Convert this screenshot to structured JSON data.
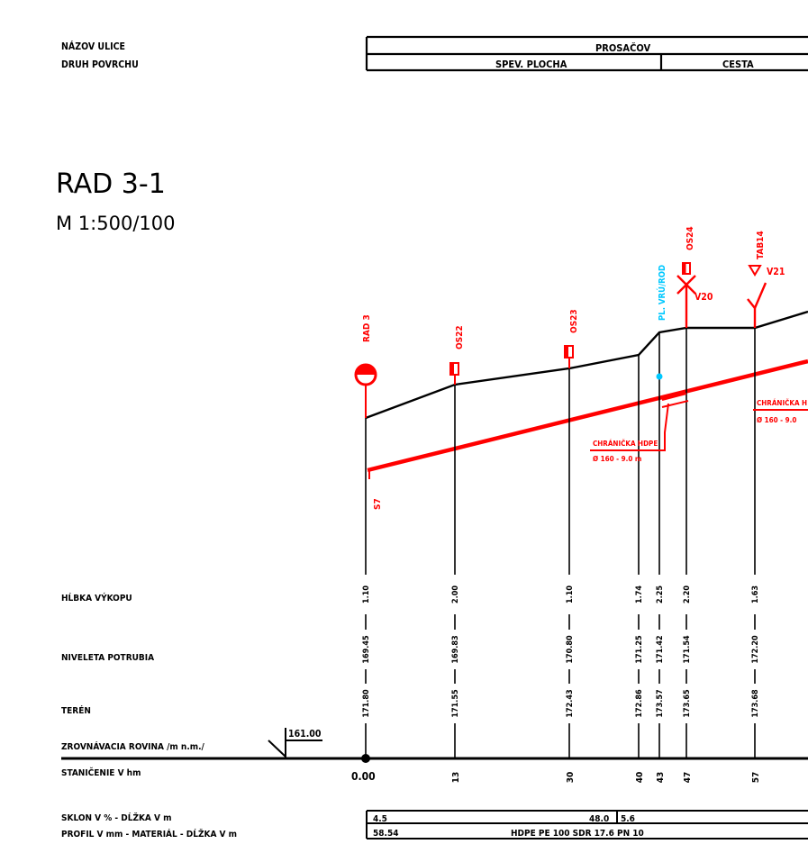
{
  "header": {
    "street_label": "NÁZOV ULICE",
    "surface_label": "DRUH POVRCHU",
    "street_name": "PROSAČOV",
    "surface_1": "SPEV. PLOCHA",
    "surface_2": "CESTA"
  },
  "title": {
    "name": "RAD 3-1",
    "scale": "M 1:500/100"
  },
  "table_labels": {
    "depth": "HĹBKA VÝKOPU",
    "pipe_level": "NIVELETA POTRUBIA",
    "terrain": "TERÉN",
    "datum": "ZROVNÁVACIA ROVINA /m n.m./",
    "datum_value": "161.00",
    "stationing": "STANIČENIE V hm",
    "slope": "SKLON V % - DĹŽKA V m",
    "profile": "PROFIL V mm - MATERIÁL - DĹŽKA V m"
  },
  "bottom_table": {
    "slope_1": "4.5",
    "slope_2": "48.0",
    "slope_3": "5.6",
    "length_1": "58.54",
    "material": "HDPE PE 100 SDR 17.6 PN 10"
  },
  "nodes": [
    {
      "label": "RAD 3",
      "color": "#ff0000"
    },
    {
      "label": "OS22",
      "color": "#ff0000"
    },
    {
      "label": "OS23",
      "color": "#ff0000"
    },
    {
      "label": "PL. VRÚ/ROD",
      "color": "#00c8ff"
    },
    {
      "label": "OS24",
      "color": "#ff0000"
    },
    {
      "label": "TAB14",
      "color": "#ff0000"
    }
  ],
  "valves": [
    {
      "label": "V20"
    },
    {
      "label": "V21"
    }
  ],
  "annotations": {
    "s7": "S7",
    "casing_1_title": "CHRÁNIČKA HDPE",
    "casing_1_spec": "Ø 160 - 9.0 m",
    "casing_2_title": "CHRÁNIČKA H",
    "casing_2_spec": "Ø 160 - 9.0"
  },
  "stations": [
    {
      "station": "0.00",
      "terrain": "171.80",
      "pipe": "169.45",
      "depth": "1.10"
    },
    {
      "station": "13",
      "terrain": "171.55",
      "pipe": "169.83",
      "depth": "2.00"
    },
    {
      "station": "30",
      "terrain": "172.43",
      "pipe": "170.80",
      "depth": "1.10"
    },
    {
      "station": "40",
      "terrain": "172.86",
      "pipe": "171.25",
      "depth": "1.74"
    },
    {
      "station": "43",
      "terrain": "173.57",
      "pipe": "171.42",
      "depth": "2.25"
    },
    {
      "station": "47",
      "terrain": "173.65",
      "pipe": "171.54",
      "depth": "2.20"
    },
    {
      "station": "57",
      "terrain": "173.68",
      "pipe": "172.20",
      "depth": "1.63"
    }
  ],
  "colors": {
    "pipe": "#ff0000",
    "terrain": "#000000",
    "vent": "#00c8ff"
  }
}
